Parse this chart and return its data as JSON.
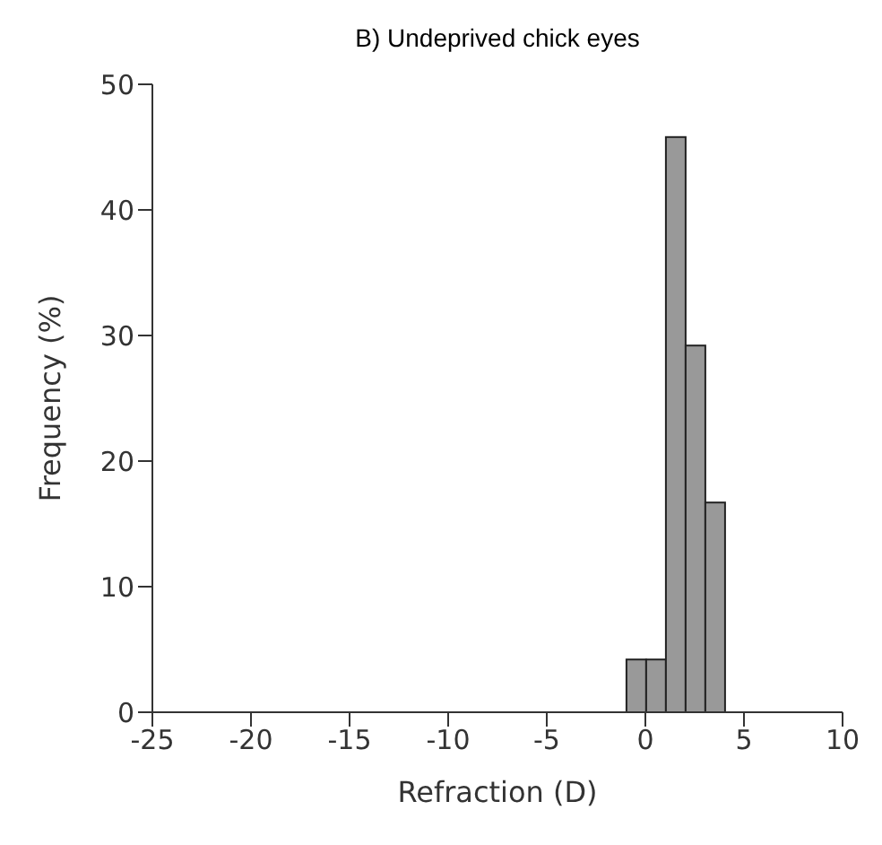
{
  "chart_data": {
    "type": "histogram",
    "title": "B) Undeprived chick eyes",
    "xlabel": "Refraction (D)",
    "ylabel": "Frequency (%)",
    "bins": [
      -1,
      0,
      1,
      2,
      3,
      4
    ],
    "values": [
      4.2,
      4.2,
      45.8,
      29.2,
      16.7
    ],
    "color": "#999999",
    "xlim": [
      -25,
      10
    ],
    "xticks": [
      -25,
      -20,
      -15,
      -10,
      -5,
      0,
      5,
      10
    ],
    "ylim": [
      0,
      50
    ],
    "yticks": [
      0,
      10,
      20,
      30,
      40,
      50
    ],
    "grid": false
  }
}
